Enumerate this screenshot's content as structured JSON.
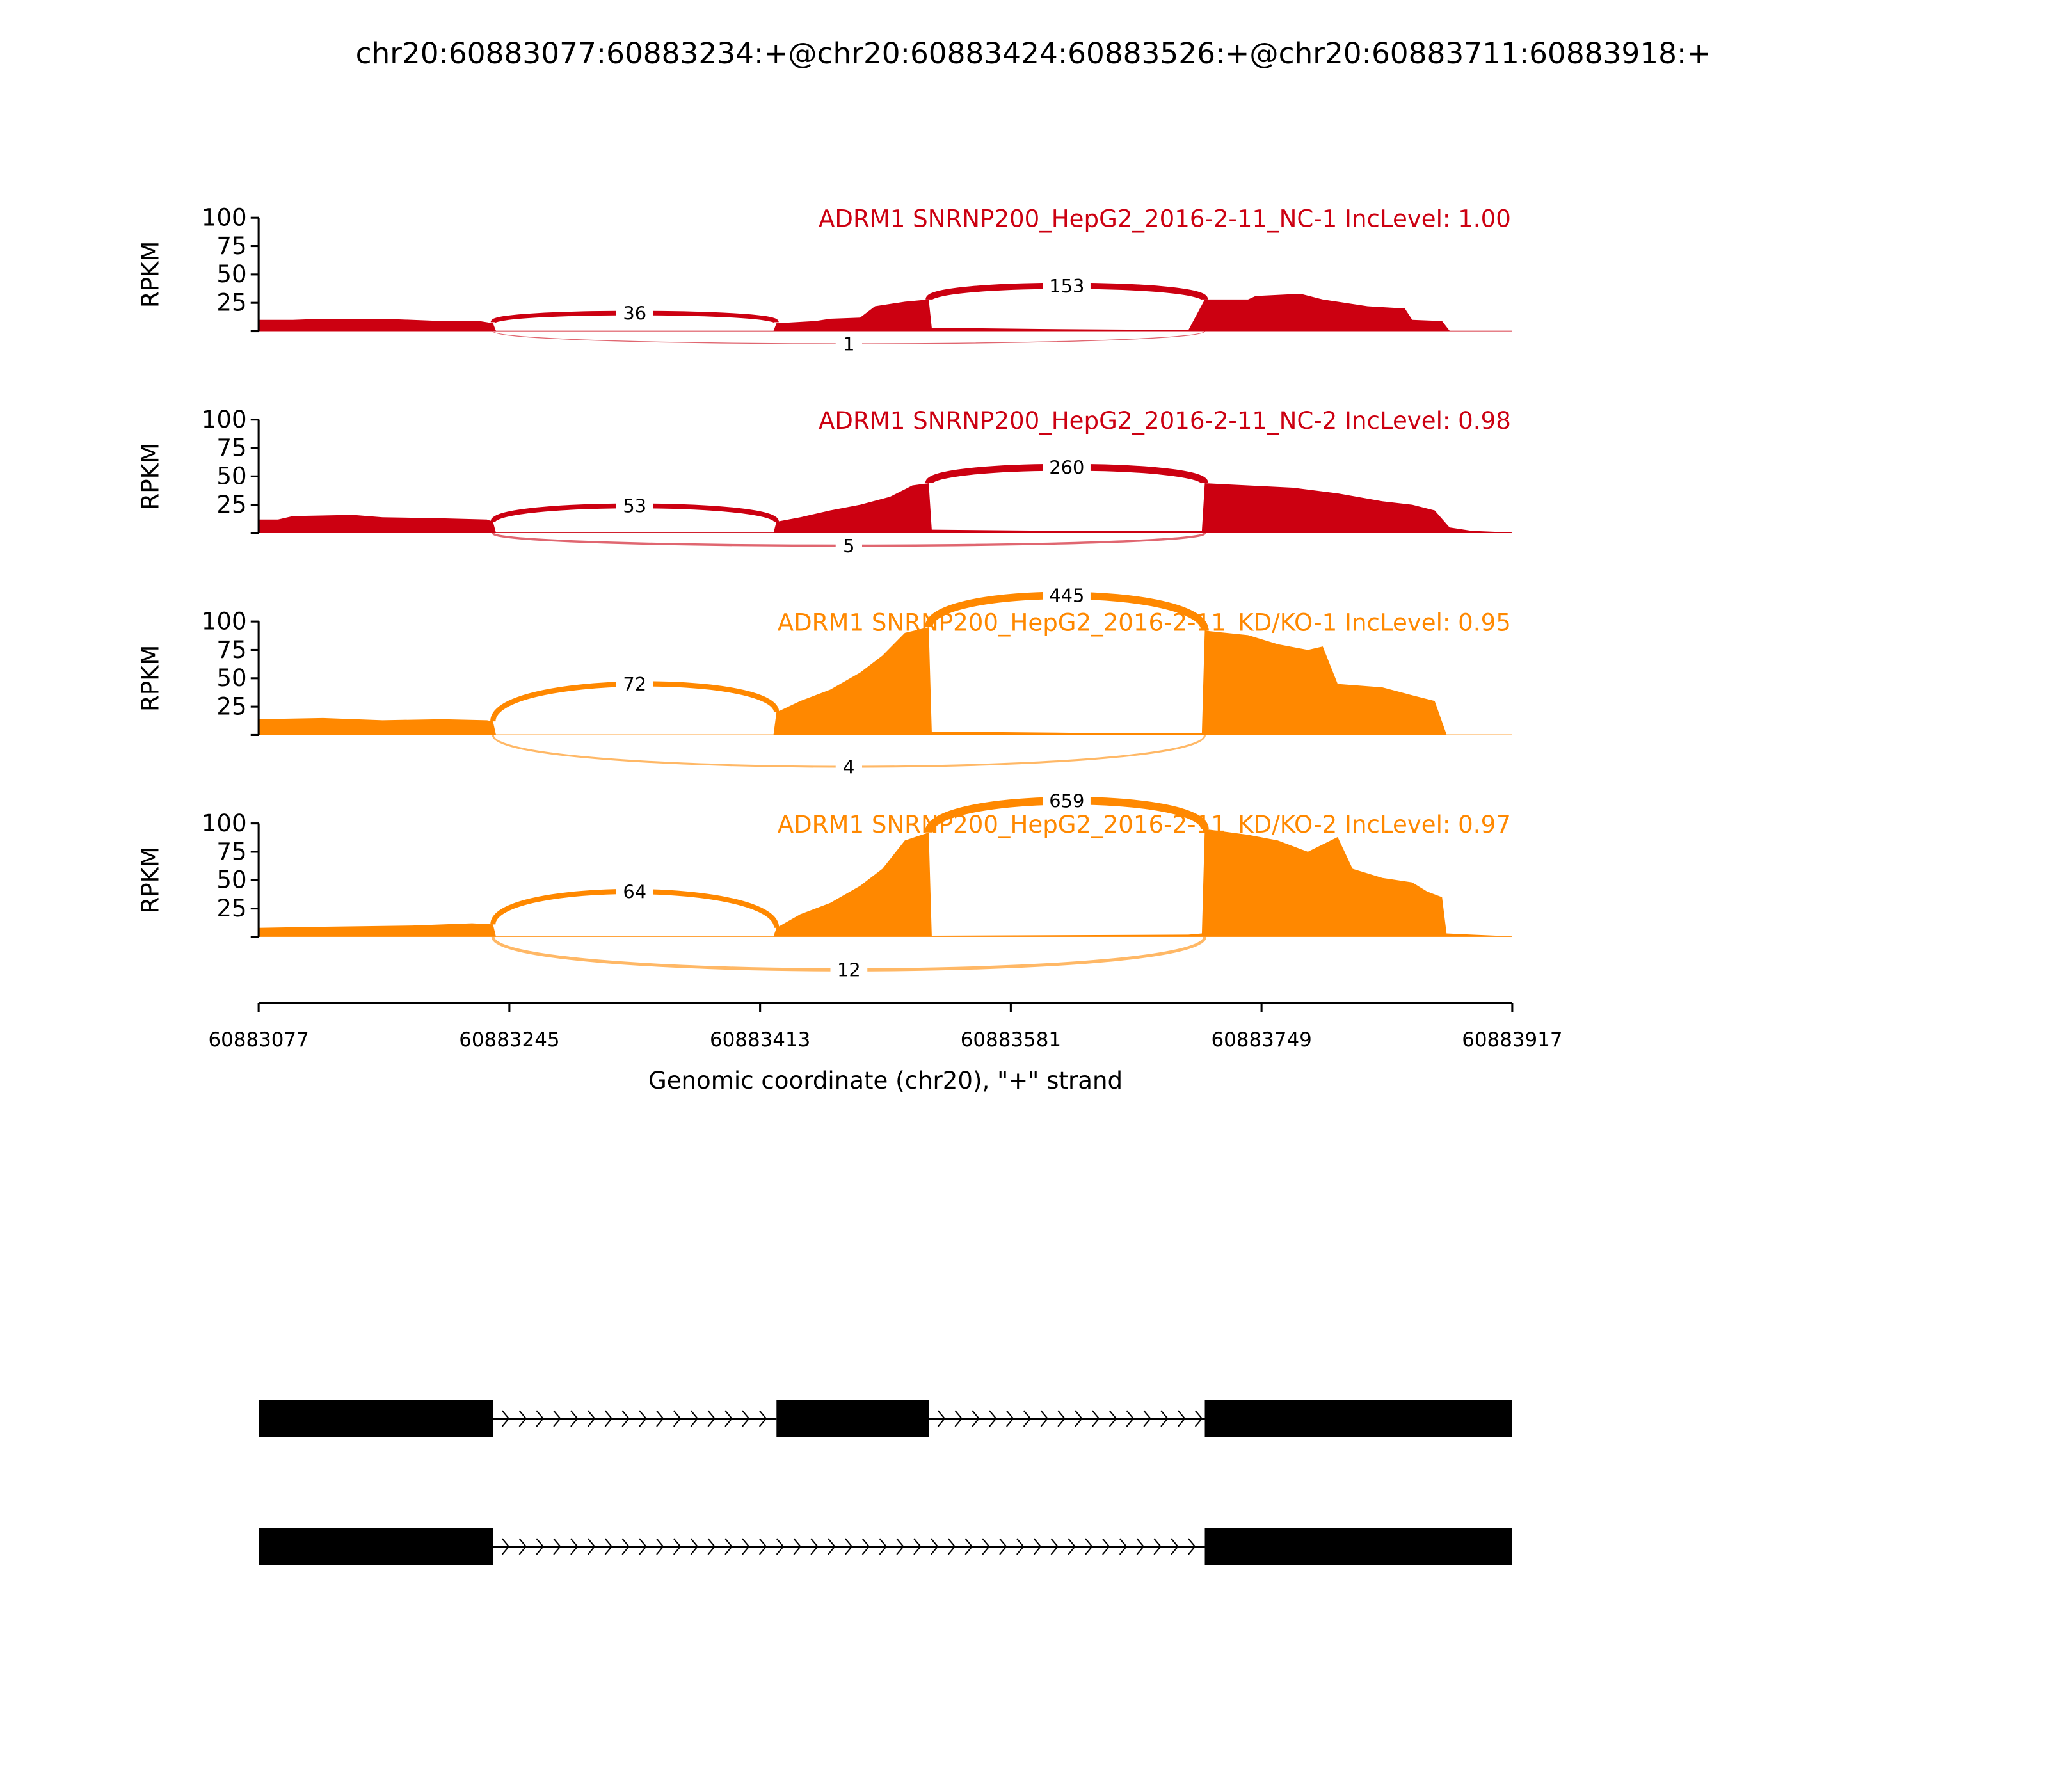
{
  "chart_data": {
    "type": "area",
    "title": "chr20:60883077:60883234:+@chr20:60883424:60883526:+@chr20:60883711:60883918:+",
    "xlabel": "Genomic coordinate (chr20), \"+\" strand",
    "ylabel": "RPKM",
    "xlim": [
      60883077,
      60883917
    ],
    "ylim": [
      0,
      100
    ],
    "x_ticks": [
      "60883077",
      "60883245",
      "60883413",
      "60883581",
      "60883749",
      "60883917"
    ],
    "y_ticks": [
      "25",
      "50",
      "75",
      "100"
    ],
    "exons": [
      [
        60883077,
        60883234
      ],
      [
        60883424,
        60883526
      ],
      [
        60883711,
        60883917
      ]
    ],
    "isoforms": [
      {
        "exons": [
          [
            60883077,
            60883234
          ],
          [
            60883424,
            60883526
          ],
          [
            60883711,
            60883917
          ]
        ]
      },
      {
        "exons": [
          [
            60883077,
            60883234
          ],
          [
            60883711,
            60883917
          ]
        ]
      }
    ],
    "panels": [
      {
        "label": "ADRM1 SNRNP200_HepG2_2016-2-11_NC-1 IncLevel: 1.00",
        "color": "#cc0011",
        "coverage": [
          [
            60883077,
            10
          ],
          [
            60883100,
            10
          ],
          [
            60883120,
            11
          ],
          [
            60883160,
            11
          ],
          [
            60883200,
            9
          ],
          [
            60883225,
            9
          ],
          [
            60883234,
            7
          ],
          [
            60883236,
            0.5
          ],
          [
            60883422,
            0.5
          ],
          [
            60883424,
            7
          ],
          [
            60883450,
            9
          ],
          [
            60883460,
            11
          ],
          [
            60883480,
            12
          ],
          [
            60883490,
            22
          ],
          [
            60883510,
            26
          ],
          [
            60883526,
            28
          ],
          [
            60883528,
            3
          ],
          [
            60883600,
            2
          ],
          [
            60883700,
            1
          ],
          [
            60883711,
            28
          ],
          [
            60883740,
            28
          ],
          [
            60883745,
            31
          ],
          [
            60883775,
            33
          ],
          [
            60883790,
            28
          ],
          [
            60883820,
            22
          ],
          [
            60883845,
            20
          ],
          [
            60883850,
            10
          ],
          [
            60883870,
            9
          ],
          [
            60883875,
            0.5
          ],
          [
            60883917,
            0.5
          ]
        ],
        "junctions": [
          {
            "from": 60883234,
            "to": 60883424,
            "count": "36",
            "side": "above",
            "y0": 8,
            "y1": 8,
            "peak": 16
          },
          {
            "from": 60883526,
            "to": 60883711,
            "count": "153",
            "side": "above",
            "y0": 28,
            "y1": 28,
            "peak": 40
          },
          {
            "from": 60883234,
            "to": 60883711,
            "count": "1",
            "side": "below",
            "y0": 0,
            "y1": 0,
            "peak": -11
          }
        ]
      },
      {
        "label": "ADRM1 SNRNP200_HepG2_2016-2-11_NC-2 IncLevel: 0.98",
        "color": "#cc0011",
        "coverage": [
          [
            60883077,
            12
          ],
          [
            60883090,
            12
          ],
          [
            60883100,
            15
          ],
          [
            60883140,
            16
          ],
          [
            60883160,
            14
          ],
          [
            60883200,
            13
          ],
          [
            60883230,
            12
          ],
          [
            60883234,
            10
          ],
          [
            60883236,
            0.5
          ],
          [
            60883422,
            0.5
          ],
          [
            60883424,
            10
          ],
          [
            60883440,
            14
          ],
          [
            60883460,
            20
          ],
          [
            60883480,
            25
          ],
          [
            60883500,
            32
          ],
          [
            60883515,
            42
          ],
          [
            60883526,
            44
          ],
          [
            60883528,
            3
          ],
          [
            60883620,
            2
          ],
          [
            60883709,
            2
          ],
          [
            60883711,
            44
          ],
          [
            60883740,
            42
          ],
          [
            60883770,
            40
          ],
          [
            60883800,
            35
          ],
          [
            60883830,
            28
          ],
          [
            60883850,
            25
          ],
          [
            60883865,
            20
          ],
          [
            60883875,
            5
          ],
          [
            60883890,
            2
          ],
          [
            60883917,
            0.5
          ]
        ],
        "junctions": [
          {
            "from": 60883234,
            "to": 60883424,
            "count": "53",
            "side": "above",
            "y0": 10,
            "y1": 10,
            "peak": 24
          },
          {
            "from": 60883526,
            "to": 60883711,
            "count": "260",
            "side": "above",
            "y0": 44,
            "y1": 44,
            "peak": 58
          },
          {
            "from": 60883234,
            "to": 60883711,
            "count": "5",
            "side": "below",
            "y0": 0,
            "y1": 0,
            "peak": -11
          }
        ]
      },
      {
        "label": "ADRM1 SNRNP200_HepG2_2016-2-11_KD/KO-1 IncLevel: 0.95",
        "color": "#ff8800",
        "coverage": [
          [
            60883077,
            14
          ],
          [
            60883120,
            15
          ],
          [
            60883160,
            13
          ],
          [
            60883200,
            14
          ],
          [
            60883230,
            13
          ],
          [
            60883234,
            12
          ],
          [
            60883236,
            0.5
          ],
          [
            60883422,
            0.5
          ],
          [
            60883424,
            20
          ],
          [
            60883440,
            30
          ],
          [
            60883460,
            40
          ],
          [
            60883480,
            55
          ],
          [
            60883495,
            70
          ],
          [
            60883510,
            90
          ],
          [
            60883526,
            95
          ],
          [
            60883528,
            3
          ],
          [
            60883620,
            2
          ],
          [
            60883709,
            2
          ],
          [
            60883711,
            92
          ],
          [
            60883740,
            88
          ],
          [
            60883760,
            80
          ],
          [
            60883780,
            75
          ],
          [
            60883790,
            78
          ],
          [
            60883800,
            45
          ],
          [
            60883830,
            42
          ],
          [
            60883850,
            35
          ],
          [
            60883865,
            30
          ],
          [
            60883873,
            0.5
          ],
          [
            60883917,
            0.5
          ]
        ],
        "junctions": [
          {
            "from": 60883234,
            "to": 60883424,
            "count": "72",
            "side": "above",
            "y0": 12,
            "y1": 20,
            "peak": 45
          },
          {
            "from": 60883526,
            "to": 60883711,
            "count": "445",
            "side": "above",
            "y0": 95,
            "y1": 92,
            "peak": 123
          },
          {
            "from": 60883234,
            "to": 60883711,
            "count": "4",
            "side": "below",
            "y0": 0,
            "y1": 0,
            "peak": -28
          }
        ]
      },
      {
        "label": "ADRM1 SNRNP200_HepG2_2016-2-11_KD/KO-2 IncLevel: 0.97",
        "color": "#ff8800",
        "coverage": [
          [
            60883077,
            8
          ],
          [
            60883120,
            9
          ],
          [
            60883180,
            10
          ],
          [
            60883220,
            12
          ],
          [
            60883234,
            11
          ],
          [
            60883236,
            0.5
          ],
          [
            60883422,
            0.5
          ],
          [
            60883424,
            8
          ],
          [
            60883440,
            20
          ],
          [
            60883460,
            30
          ],
          [
            60883480,
            45
          ],
          [
            60883495,
            60
          ],
          [
            60883510,
            85
          ],
          [
            60883526,
            92
          ],
          [
            60883528,
            1
          ],
          [
            60883700,
            2
          ],
          [
            60883709,
            3
          ],
          [
            60883711,
            95
          ],
          [
            60883740,
            90
          ],
          [
            60883760,
            85
          ],
          [
            60883780,
            75
          ],
          [
            60883800,
            88
          ],
          [
            60883810,
            60
          ],
          [
            60883830,
            52
          ],
          [
            60883850,
            48
          ],
          [
            60883860,
            40
          ],
          [
            60883870,
            35
          ],
          [
            60883873,
            3
          ],
          [
            60883917,
            0.5
          ]
        ],
        "junctions": [
          {
            "from": 60883234,
            "to": 60883424,
            "count": "64",
            "side": "above",
            "y0": 11,
            "y1": 8,
            "peak": 40
          },
          {
            "from": 60883526,
            "to": 60883711,
            "count": "659",
            "side": "above",
            "y0": 92,
            "y1": 95,
            "peak": 120
          },
          {
            "from": 60883234,
            "to": 60883711,
            "count": "12",
            "side": "below",
            "y0": 0,
            "y1": 0,
            "peak": -29
          }
        ]
      }
    ]
  }
}
